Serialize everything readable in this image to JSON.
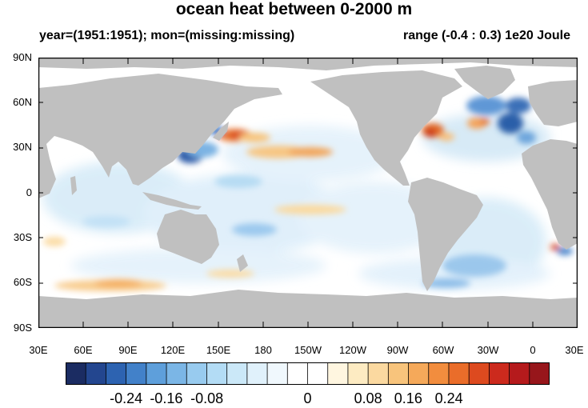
{
  "title": "ocean heat between 0-2000 m",
  "subtitle_left": "year=(1951:1951); mon=(missing:missing)",
  "subtitle_right": "range (-0.4 : 0.3) 1e20 Joule",
  "lat_labels": [
    "90N",
    "60N",
    "30N",
    "0",
    "30S",
    "60S",
    "90S"
  ],
  "lon_labels": [
    "30E",
    "60E",
    "90E",
    "120E",
    "150E",
    "180",
    "150W",
    "120W",
    "90W",
    "60W",
    "30W",
    "0",
    "30E"
  ],
  "colorbar": {
    "colors": [
      "#1b2c62",
      "#23468f",
      "#2d63b1",
      "#4281c9",
      "#5e9fdb",
      "#7bb6e6",
      "#98cbef",
      "#b3dcf5",
      "#cbe8f8",
      "#e0f1fb",
      "#f0f8fd",
      "#ffffff",
      "#ffffff",
      "#fff6e0",
      "#fdebc2",
      "#fbd9a0",
      "#f8c47c",
      "#f5a95a",
      "#f28d3e",
      "#ea6d2a",
      "#dd4a1f",
      "#cc2a1d",
      "#b51a1c",
      "#97161b"
    ],
    "labels": [
      "-0.24",
      "-0.16",
      "-0.08",
      "0",
      "0.08",
      "0.16",
      "0.24"
    ],
    "label_positions": [
      0.125,
      0.208,
      0.292,
      0.5,
      0.625,
      0.708,
      0.792
    ]
  },
  "colors": {
    "land": "#c0c0c0",
    "ocean": "#ffffff"
  }
}
